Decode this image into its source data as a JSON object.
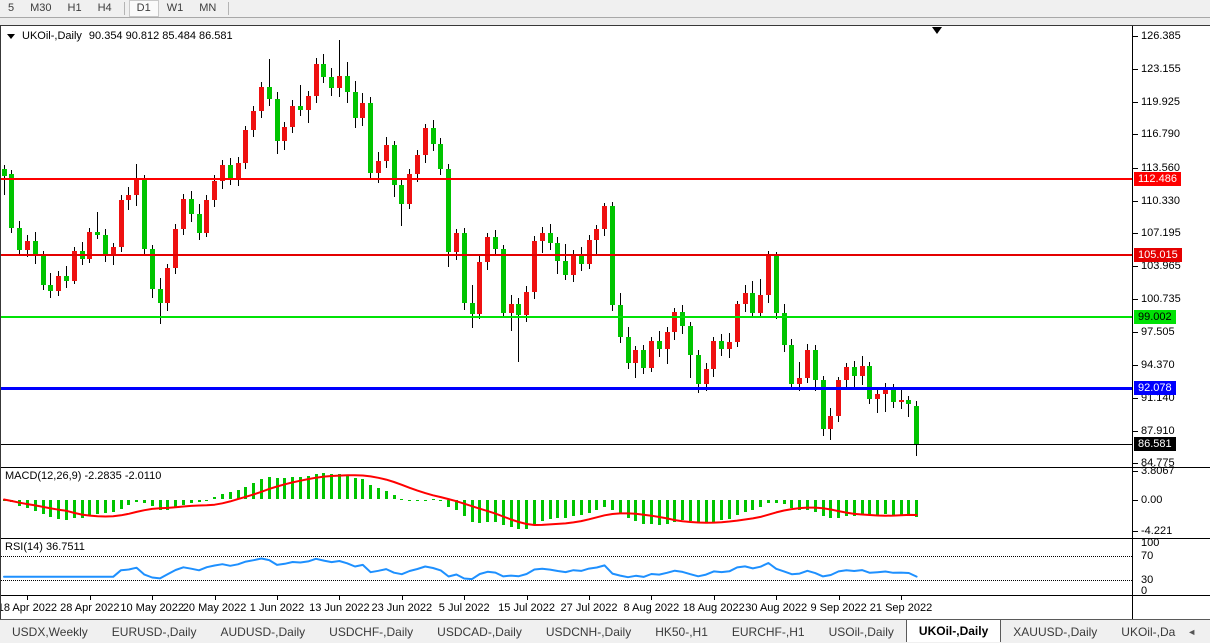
{
  "toolbar": {
    "timeframes": [
      {
        "label": "5",
        "active": false
      },
      {
        "label": "M30",
        "active": false
      },
      {
        "label": "H1",
        "active": false
      },
      {
        "label": "H4",
        "active": false
      },
      {
        "label": "D1",
        "active": true
      },
      {
        "label": "W1",
        "active": false
      },
      {
        "label": "MN",
        "active": false
      }
    ]
  },
  "chart": {
    "title_symbol": "UKOil-,Daily",
    "title_ohlc": "90.354 90.812 85.484 86.581",
    "price_ticks": [
      "126.385",
      "123.155",
      "119.925",
      "116.790",
      "113.560",
      "110.330",
      "107.195",
      "103.965",
      "100.735",
      "97.505",
      "94.370",
      "91.140",
      "87.910",
      "84.775"
    ],
    "levels": [
      {
        "value": 112.486,
        "label": "112.486",
        "color": "#FE0000",
        "text": "#FFFFFF",
        "thickness": 2
      },
      {
        "value": 105.015,
        "label": "105.015",
        "color": "#E40000",
        "text": "#FFFFFF",
        "thickness": 2
      },
      {
        "value": 99.002,
        "label": "99.002",
        "color": "#00E205",
        "text": "#000000",
        "thickness": 2
      },
      {
        "value": 92.078,
        "label": "92.078",
        "color": "#0000FE",
        "text": "#FFFFFF",
        "thickness": 3
      }
    ],
    "current_price": {
      "value": 86.581,
      "label": "86.581",
      "line_color": "#000000",
      "bg": "#000000",
      "text": "#FFFFFF"
    },
    "macd": {
      "label": "MACD(12,26,9) -2.2835 -2.0110",
      "params": {
        "fast": 12,
        "slow": 26,
        "signal": 9
      },
      "current_main": -2.2835,
      "current_signal": -2.011,
      "ticks": [
        {
          "label": "3.8067",
          "value": 3.8067
        },
        {
          "label": "0.00",
          "value": 0
        },
        {
          "label": "-4.221",
          "value": -4.221
        }
      ]
    },
    "rsi": {
      "label": "RSI(14) 36.7511",
      "period": 14,
      "current": 36.7511,
      "ticks": [
        {
          "label": "100",
          "value": 100,
          "dotted": false
        },
        {
          "label": "70",
          "value": 70,
          "dotted": true
        },
        {
          "label": "30",
          "value": 30,
          "dotted": true
        },
        {
          "label": "0",
          "value": 0,
          "dotted": false
        }
      ]
    }
  },
  "chart_data": {
    "type": "candlestick",
    "symbol": "UKOil-",
    "timeframe": "Daily",
    "title": "UKOil-,Daily",
    "ohlc_display": {
      "open": 90.354,
      "high": 90.812,
      "low": 85.484,
      "close": 86.581
    },
    "price_axis": {
      "top": 126.385,
      "bottom": 84.775
    },
    "x_ticks": {
      "labels": [
        "18 Apr 2022",
        "28 Apr 2022",
        "10 May 2022",
        "20 May 2022",
        "1 Jun 2022",
        "13 Jun 2022",
        "23 Jun 2022",
        "5 Jul 2022",
        "15 Jul 2022",
        "27 Jul 2022",
        "8 Aug 2022",
        "18 Aug 2022",
        "30 Aug 2022",
        "9 Sep 2022",
        "21 Sep 2022"
      ],
      "candle_indices": [
        3,
        11,
        19,
        27,
        35,
        43,
        51,
        59,
        67,
        75,
        83,
        91,
        99,
        107,
        115
      ]
    },
    "horizontal_levels": [
      112.486,
      105.015,
      99.002,
      92.078,
      86.581
    ],
    "colors": {
      "bull_body": "#EE1111",
      "bear_body": "#00C400",
      "wick": "#000000",
      "macd_histogram": "#00C400",
      "macd_signal": "#FF0000",
      "rsi_line": "#1E90FF"
    },
    "candles": [
      [
        "13 Apr 2022",
        113.4,
        113.8,
        110.9,
        112.7
      ],
      [
        "14 Apr 2022",
        112.9,
        113.3,
        107.2,
        107.7
      ],
      [
        "15 Apr 2022",
        107.7,
        108.4,
        104.9,
        105.5
      ],
      [
        "18 Apr 2022",
        105.5,
        107.0,
        104.8,
        106.4
      ],
      [
        "19 Apr 2022",
        106.4,
        107.3,
        104.2,
        104.9
      ],
      [
        "20 Apr 2022",
        104.9,
        105.4,
        101.6,
        102.1
      ],
      [
        "21 Apr 2022",
        102.1,
        103.3,
        100.9,
        101.5
      ],
      [
        "22 Apr 2022",
        101.5,
        103.5,
        101.0,
        103.0
      ],
      [
        "25 Apr 2022",
        103.0,
        104.0,
        101.8,
        102.5
      ],
      [
        "26 Apr 2022",
        102.5,
        105.8,
        102.2,
        105.4
      ],
      [
        "27 Apr 2022",
        105.4,
        106.3,
        104.1,
        104.7
      ],
      [
        "28 Apr 2022",
        104.7,
        107.7,
        104.3,
        107.3
      ],
      [
        "29 Apr 2022",
        107.3,
        109.2,
        106.6,
        107.0
      ],
      [
        "2 May 2022",
        107.0,
        107.6,
        104.4,
        105.0
      ],
      [
        "3 May 2022",
        105.0,
        106.2,
        104.1,
        105.8
      ],
      [
        "4 May 2022",
        105.8,
        110.9,
        105.3,
        110.4
      ],
      [
        "5 May 2022",
        110.4,
        111.7,
        109.4,
        110.9
      ],
      [
        "6 May 2022",
        110.9,
        113.9,
        109.8,
        112.4
      ],
      [
        "9 May 2022",
        112.4,
        112.8,
        105.1,
        105.6
      ],
      [
        "10 May 2022",
        105.6,
        106.0,
        100.9,
        101.7
      ],
      [
        "11 May 2022",
        101.7,
        102.8,
        98.3,
        100.4
      ],
      [
        "12 May 2022",
        100.4,
        104.2,
        99.6,
        103.8
      ],
      [
        "13 May 2022",
        103.8,
        108.1,
        103.2,
        107.6
      ],
      [
        "16 May 2022",
        107.6,
        111.0,
        107.0,
        110.5
      ],
      [
        "17 May 2022",
        110.5,
        111.3,
        108.3,
        109.0
      ],
      [
        "18 May 2022",
        109.0,
        110.0,
        106.5,
        107.2
      ],
      [
        "19 May 2022",
        107.2,
        110.9,
        106.8,
        110.4
      ],
      [
        "20 May 2022",
        110.4,
        112.8,
        109.7,
        112.3
      ],
      [
        "23 May 2022",
        112.3,
        114.3,
        111.5,
        113.8
      ],
      [
        "24 May 2022",
        113.8,
        114.5,
        111.9,
        112.4
      ],
      [
        "25 May 2022",
        112.4,
        114.6,
        111.8,
        114.0
      ],
      [
        "26 May 2022",
        114.0,
        117.6,
        113.4,
        117.2
      ],
      [
        "27 May 2022",
        117.2,
        119.6,
        116.5,
        119.1
      ],
      [
        "30 May 2022",
        119.1,
        121.9,
        118.4,
        121.4
      ],
      [
        "31 May 2022",
        121.4,
        124.1,
        119.6,
        120.2
      ],
      [
        "1 Jun 2022",
        120.2,
        120.9,
        114.9,
        116.2
      ],
      [
        "2 Jun 2022",
        116.2,
        118.0,
        115.3,
        117.5
      ],
      [
        "3 Jun 2022",
        117.5,
        120.1,
        116.9,
        119.6
      ],
      [
        "6 Jun 2022",
        119.6,
        121.6,
        118.6,
        119.2
      ],
      [
        "7 Jun 2022",
        119.2,
        121.0,
        117.9,
        120.5
      ],
      [
        "8 Jun 2022",
        120.5,
        124.2,
        119.9,
        123.7
      ],
      [
        "9 Jun 2022",
        123.7,
        124.6,
        121.8,
        122.4
      ],
      [
        "10 Jun 2022",
        122.4,
        123.3,
        120.5,
        121.3
      ],
      [
        "13 Jun 2022",
        121.3,
        126.0,
        120.4,
        122.5
      ],
      [
        "14 Jun 2022",
        122.5,
        123.9,
        119.9,
        120.9
      ],
      [
        "15 Jun 2022",
        120.9,
        122.0,
        117.4,
        118.4
      ],
      [
        "16 Jun 2022",
        118.4,
        120.8,
        117.6,
        119.9
      ],
      [
        "17 Jun 2022",
        119.9,
        120.4,
        112.4,
        113.0
      ],
      [
        "20 Jun 2022",
        113.0,
        115.1,
        112.1,
        114.2
      ],
      [
        "21 Jun 2022",
        114.2,
        116.5,
        113.5,
        115.8
      ],
      [
        "22 Jun 2022",
        115.8,
        116.2,
        110.7,
        111.9
      ],
      [
        "23 Jun 2022",
        111.9,
        112.5,
        107.9,
        110.0
      ],
      [
        "24 Jun 2022",
        110.0,
        113.4,
        109.5,
        112.9
      ],
      [
        "27 Jun 2022",
        112.9,
        115.3,
        112.2,
        114.8
      ],
      [
        "28 Jun 2022",
        114.8,
        117.8,
        114.0,
        117.4
      ],
      [
        "29 Jun 2022",
        117.4,
        118.2,
        115.2,
        115.9
      ],
      [
        "30 Jun 2022",
        115.9,
        116.4,
        112.8,
        113.4
      ],
      [
        "1 Jul 2022",
        113.4,
        113.9,
        103.9,
        105.3
      ],
      [
        "4 Jul 2022",
        105.3,
        107.6,
        104.6,
        107.2
      ],
      [
        "5 Jul 2022",
        107.2,
        107.7,
        99.7,
        100.4
      ],
      [
        "6 Jul 2022",
        100.4,
        102.1,
        97.9,
        99.3
      ],
      [
        "7 Jul 2022",
        99.3,
        104.9,
        98.8,
        104.4
      ],
      [
        "8 Jul 2022",
        104.4,
        107.2,
        103.6,
        106.8
      ],
      [
        "11 Jul 2022",
        106.8,
        107.5,
        104.9,
        105.6
      ],
      [
        "12 Jul 2022",
        105.6,
        106.0,
        98.9,
        99.4
      ],
      [
        "13 Jul 2022",
        99.4,
        101.1,
        97.6,
        100.3
      ],
      [
        "14 Jul 2022",
        100.3,
        100.9,
        94.6,
        99.2
      ],
      [
        "15 Jul 2022",
        99.2,
        102.0,
        98.5,
        101.4
      ],
      [
        "18 Jul 2022",
        101.4,
        106.9,
        100.8,
        106.4
      ],
      [
        "19 Jul 2022",
        106.4,
        107.8,
        105.2,
        107.2
      ],
      [
        "20 Jul 2022",
        107.2,
        108.1,
        105.5,
        106.2
      ],
      [
        "21 Jul 2022",
        106.2,
        106.8,
        103.2,
        104.5
      ],
      [
        "22 Jul 2022",
        104.5,
        106.1,
        102.6,
        103.1
      ],
      [
        "25 Jul 2022",
        103.1,
        105.5,
        102.4,
        105.0
      ],
      [
        "26 Jul 2022",
        105.0,
        105.8,
        103.5,
        104.2
      ],
      [
        "27 Jul 2022",
        104.2,
        107.0,
        103.7,
        106.5
      ],
      [
        "28 Jul 2022",
        106.5,
        108.0,
        105.1,
        107.6
      ],
      [
        "29 Jul 2022",
        107.6,
        110.1,
        106.9,
        109.8
      ],
      [
        "1 Aug 2022",
        109.8,
        110.2,
        99.6,
        100.2
      ],
      [
        "2 Aug 2022",
        100.2,
        101.3,
        96.5,
        97.1
      ],
      [
        "3 Aug 2022",
        97.1,
        98.0,
        93.9,
        94.5
      ],
      [
        "4 Aug 2022",
        94.5,
        96.2,
        93.1,
        95.8
      ],
      [
        "5 Aug 2022",
        95.8,
        96.3,
        93.4,
        94.0
      ],
      [
        "8 Aug 2022",
        94.0,
        97.1,
        93.6,
        96.7
      ],
      [
        "9 Aug 2022",
        96.7,
        97.6,
        95.1,
        95.9
      ],
      [
        "10 Aug 2022",
        95.9,
        98.0,
        94.4,
        97.5
      ],
      [
        "11 Aug 2022",
        97.5,
        99.9,
        96.8,
        99.5
      ],
      [
        "12 Aug 2022",
        99.5,
        100.2,
        97.3,
        98.1
      ],
      [
        "15 Aug 2022",
        98.1,
        98.5,
        93.1,
        95.3
      ],
      [
        "16 Aug 2022",
        95.3,
        95.8,
        91.6,
        92.5
      ],
      [
        "17 Aug 2022",
        92.5,
        94.5,
        91.8,
        93.9
      ],
      [
        "18 Aug 2022",
        93.9,
        97.1,
        93.2,
        96.7
      ],
      [
        "19 Aug 2022",
        96.7,
        97.3,
        95.2,
        95.9
      ],
      [
        "22 Aug 2022",
        95.9,
        97.4,
        95.0,
        96.6
      ],
      [
        "23 Aug 2022",
        96.6,
        100.6,
        96.1,
        100.3
      ],
      [
        "24 Aug 2022",
        100.3,
        102.1,
        99.5,
        101.3
      ],
      [
        "25 Aug 2022",
        101.3,
        102.5,
        98.9,
        99.4
      ],
      [
        "26 Aug 2022",
        99.4,
        102.7,
        99.0,
        101.1
      ],
      [
        "29 Aug 2022",
        101.1,
        105.4,
        100.4,
        105.0
      ],
      [
        "30 Aug 2022",
        105.0,
        105.3,
        98.8,
        99.4
      ],
      [
        "31 Aug 2022",
        99.4,
        100.3,
        95.6,
        96.3
      ],
      [
        "1 Sep 2022",
        96.3,
        96.9,
        91.9,
        92.5
      ],
      [
        "2 Sep 2022",
        92.5,
        94.6,
        91.8,
        93.1
      ],
      [
        "5 Sep 2022",
        93.1,
        96.4,
        92.6,
        95.8
      ],
      [
        "6 Sep 2022",
        95.8,
        96.3,
        91.8,
        92.9
      ],
      [
        "7 Sep 2022",
        92.9,
        93.3,
        87.4,
        88.1
      ],
      [
        "8 Sep 2022",
        88.1,
        90.1,
        87.0,
        89.4
      ],
      [
        "9 Sep 2022",
        89.4,
        93.2,
        88.8,
        92.9
      ],
      [
        "12 Sep 2022",
        92.9,
        94.5,
        92.2,
        94.1
      ],
      [
        "13 Sep 2022",
        94.1,
        94.7,
        92.1,
        93.3
      ],
      [
        "14 Sep 2022",
        93.3,
        95.2,
        92.4,
        94.2
      ],
      [
        "15 Sep 2022",
        94.2,
        94.6,
        90.5,
        91.0
      ],
      [
        "16 Sep 2022",
        91.0,
        92.1,
        89.6,
        91.5
      ],
      [
        "19 Sep 2022",
        91.5,
        92.6,
        89.7,
        92.1
      ],
      [
        "20 Sep 2022",
        92.1,
        92.5,
        90.1,
        90.7
      ],
      [
        "21 Sep 2022",
        90.7,
        91.9,
        90.0,
        90.9
      ],
      [
        "22 Sep 2022",
        90.9,
        91.3,
        89.3,
        90.5
      ],
      [
        "23 Sep 2022",
        90.354,
        90.812,
        85.484,
        86.581
      ]
    ]
  },
  "tabs": {
    "items": [
      {
        "label": "USDX,Weekly",
        "active": false
      },
      {
        "label": "EURUSD-,Daily",
        "active": false
      },
      {
        "label": "AUDUSD-,Daily",
        "active": false
      },
      {
        "label": "USDCHF-,Daily",
        "active": false
      },
      {
        "label": "USDCAD-,Daily",
        "active": false
      },
      {
        "label": "USDCNH-,Daily",
        "active": false
      },
      {
        "label": "HK50-,H1",
        "active": false
      },
      {
        "label": "EURCHF-,H1",
        "active": false
      },
      {
        "label": "USOil-,Daily",
        "active": false
      },
      {
        "label": "UKOil-,Daily",
        "active": true
      },
      {
        "label": "XAUUSD-,Daily",
        "active": false
      },
      {
        "label": "UKOil-,Da",
        "active": false
      }
    ]
  }
}
